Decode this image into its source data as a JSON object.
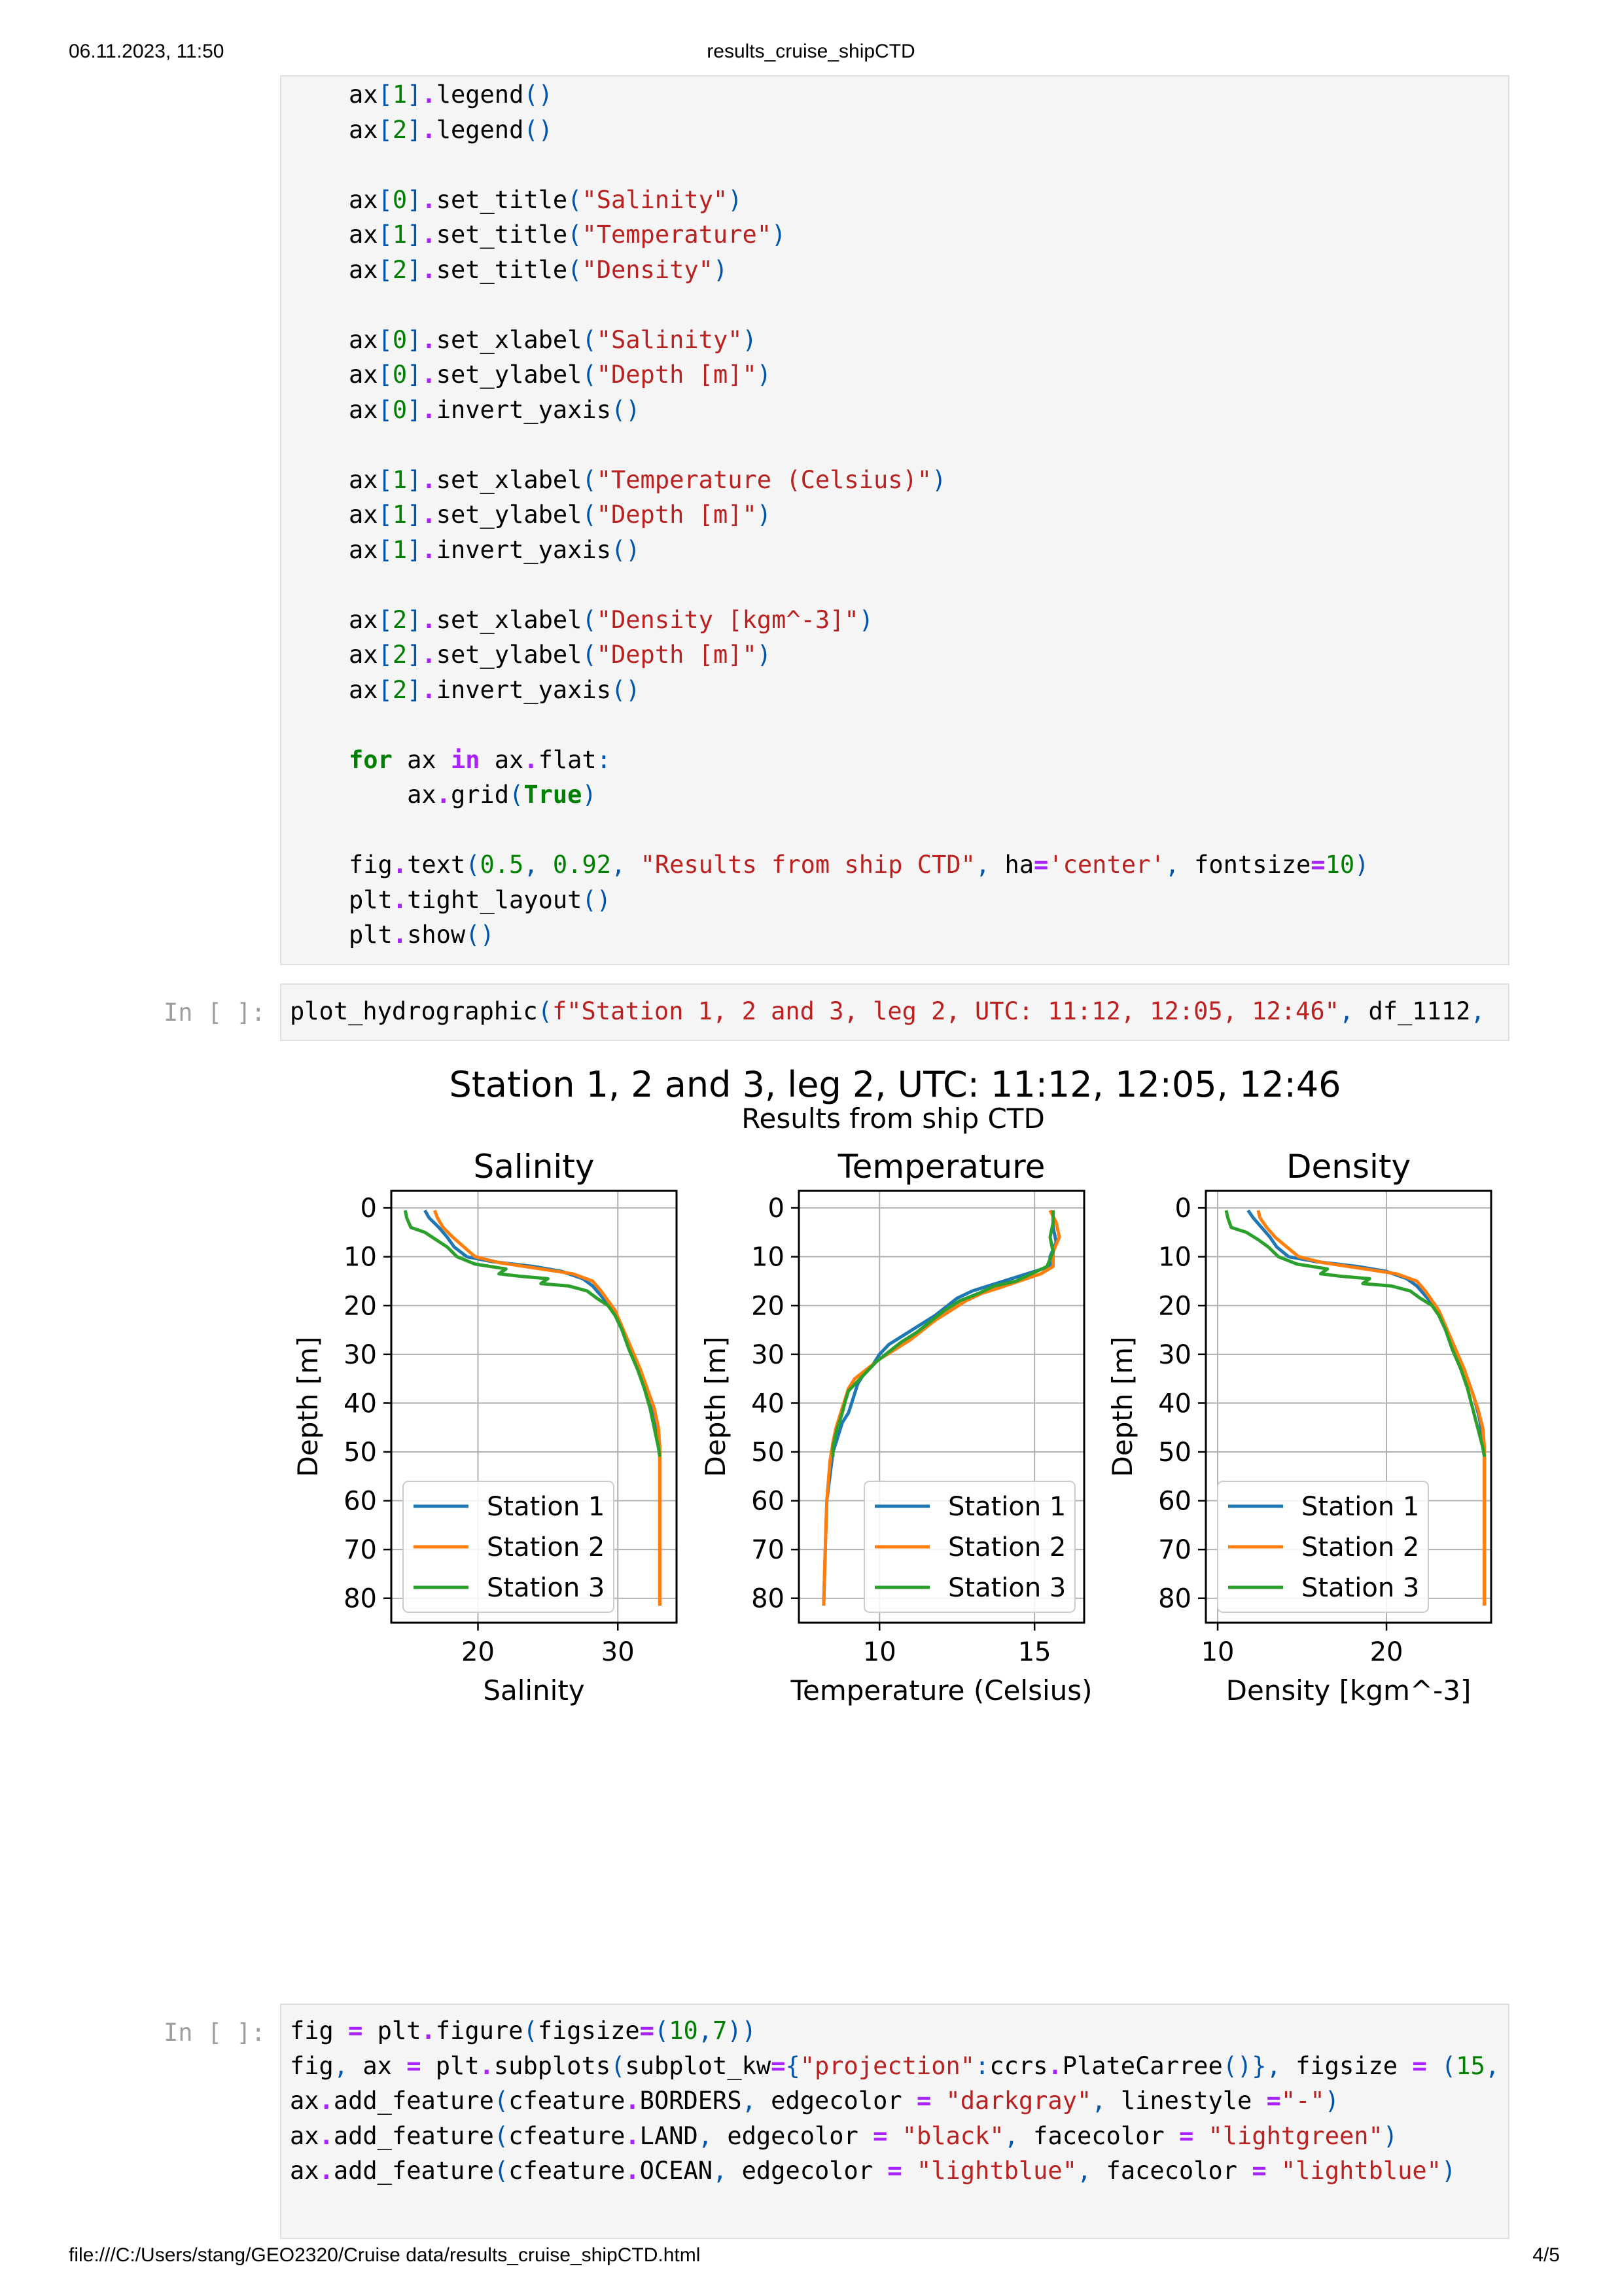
{
  "print_header": {
    "datetime": "06.11.2023, 11:50",
    "doc_title": "results_cruise_shipCTD"
  },
  "print_footer": {
    "path": "file:///C:/Users/stang/GEO2320/Cruise data/results_cruise_shipCTD.html",
    "page": "4/5"
  },
  "cells": {
    "cell2_prompt": "In [ ]:",
    "cell3_prompt": "In [ ]:"
  },
  "figure": {
    "suptitle": "Station 1, 2 and 3, leg 2, UTC: 11:12, 12:05, 12:46",
    "subtitle": "Results from ship CTD"
  },
  "colors": {
    "station1": "#1f77b4",
    "station2": "#ff7f0e",
    "station3": "#2ca02c"
  },
  "chart_data": [
    {
      "type": "line",
      "title": "Salinity",
      "xlabel": "Salinity",
      "ylabel": "Depth [m]",
      "xlim": [
        13.8,
        34.2
      ],
      "ylim": [
        85,
        -3.5
      ],
      "xticks": [
        20,
        30
      ],
      "yticks": [
        0,
        10,
        20,
        30,
        40,
        50,
        60,
        70,
        80
      ],
      "grid": true,
      "legend": "lower-left",
      "series": [
        {
          "name": "Station 1",
          "points": [
            [
              16.2,
              0.5
            ],
            [
              16.5,
              2
            ],
            [
              17.2,
              4
            ],
            [
              17.8,
              6
            ],
            [
              18.3,
              8
            ],
            [
              19.2,
              10
            ],
            [
              21,
              11
            ],
            [
              24,
              12
            ],
            [
              26,
              13
            ],
            [
              27.5,
              14.5
            ],
            [
              28.2,
              16
            ],
            [
              28.8,
              18
            ],
            [
              29.4,
              20
            ],
            [
              30,
              23
            ],
            [
              30.6,
              27
            ],
            [
              31.2,
              31
            ],
            [
              31.8,
              35
            ],
            [
              32.3,
              39
            ],
            [
              32.7,
              43
            ],
            [
              32.9,
              47
            ],
            [
              33,
              50
            ],
            [
              33,
              60
            ],
            [
              33,
              70
            ],
            [
              33,
              81.5
            ]
          ]
        },
        {
          "name": "Station 2",
          "points": [
            [
              16.9,
              0.5
            ],
            [
              17.1,
              2
            ],
            [
              17.5,
              4
            ],
            [
              18.2,
              6
            ],
            [
              19,
              8
            ],
            [
              19.8,
              10
            ],
            [
              21.5,
              11.2
            ],
            [
              24.5,
              12.5
            ],
            [
              26.8,
              13.5
            ],
            [
              28.2,
              15
            ],
            [
              28.8,
              17
            ],
            [
              29.3,
              19
            ],
            [
              29.8,
              21
            ],
            [
              30.4,
              25
            ],
            [
              31,
              29
            ],
            [
              31.6,
              33
            ],
            [
              32.1,
              37
            ],
            [
              32.6,
              41
            ],
            [
              32.9,
              45
            ],
            [
              33,
              49
            ],
            [
              33,
              60
            ],
            [
              33,
              70
            ],
            [
              33,
              81.5
            ]
          ]
        },
        {
          "name": "Station 3",
          "points": [
            [
              14.8,
              0.5
            ],
            [
              14.9,
              2
            ],
            [
              15.2,
              4
            ],
            [
              16.2,
              5
            ],
            [
              17,
              6.5
            ],
            [
              17.8,
              8
            ],
            [
              18.5,
              10
            ],
            [
              19.8,
              11.5
            ],
            [
              22,
              12.5
            ],
            [
              21.5,
              13.5
            ],
            [
              23,
              14
            ],
            [
              25,
              14.5
            ],
            [
              24.5,
              15.5
            ],
            [
              26.5,
              16
            ],
            [
              27.8,
              17
            ],
            [
              28.5,
              18.5
            ],
            [
              29.3,
              20
            ],
            [
              29.8,
              22
            ],
            [
              30.3,
              25
            ],
            [
              30.8,
              29
            ],
            [
              31.4,
              33
            ],
            [
              31.9,
              37
            ],
            [
              32.3,
              41
            ],
            [
              32.6,
              45
            ],
            [
              32.9,
              49
            ],
            [
              33,
              51
            ]
          ]
        }
      ]
    },
    {
      "type": "line",
      "title": "Temperature",
      "xlabel": "Temperature (Celsius)",
      "ylabel": "Depth [m]",
      "xlim": [
        7.4,
        16.6
      ],
      "ylim": [
        85,
        -3.5
      ],
      "xticks": [
        10,
        15
      ],
      "yticks": [
        0,
        10,
        20,
        30,
        40,
        50,
        60,
        70,
        80
      ],
      "grid": true,
      "legend": "lower-right",
      "series": [
        {
          "name": "Station 1",
          "points": [
            [
              15.6,
              0.5
            ],
            [
              15.6,
              4
            ],
            [
              15.7,
              7
            ],
            [
              15.5,
              10
            ],
            [
              15.5,
              12
            ],
            [
              15,
              13
            ],
            [
              14.5,
              14
            ],
            [
              14,
              15
            ],
            [
              13.5,
              16
            ],
            [
              13,
              17
            ],
            [
              12.5,
              18.5
            ],
            [
              12.2,
              20
            ],
            [
              11.8,
              22
            ],
            [
              11.3,
              24
            ],
            [
              10.8,
              26
            ],
            [
              10.3,
              28
            ],
            [
              10,
              30
            ],
            [
              9.8,
              32
            ],
            [
              9.5,
              34
            ],
            [
              9.3,
              36
            ],
            [
              9.2,
              38
            ],
            [
              9.1,
              40
            ],
            [
              9,
              42
            ],
            [
              8.8,
              44
            ],
            [
              8.7,
              46
            ],
            [
              8.6,
              48
            ],
            [
              8.5,
              50
            ],
            [
              8.4,
              55
            ],
            [
              8.3,
              60
            ],
            [
              8.25,
              70
            ],
            [
              8.2,
              81.5
            ]
          ]
        },
        {
          "name": "Station 2",
          "points": [
            [
              15.5,
              0.5
            ],
            [
              15.7,
              3
            ],
            [
              15.8,
              6
            ],
            [
              15.6,
              9
            ],
            [
              15.6,
              12
            ],
            [
              15.2,
              13.5
            ],
            [
              14.5,
              15
            ],
            [
              13.8,
              16.5
            ],
            [
              13.3,
              17.5
            ],
            [
              12.8,
              19
            ],
            [
              12.3,
              21
            ],
            [
              11.8,
              23
            ],
            [
              11.4,
              25
            ],
            [
              11,
              27
            ],
            [
              10.5,
              29
            ],
            [
              10,
              31
            ],
            [
              9.6,
              33
            ],
            [
              9.2,
              35
            ],
            [
              9,
              37
            ],
            [
              8.9,
              39
            ],
            [
              8.8,
              41
            ],
            [
              8.7,
              43
            ],
            [
              8.6,
              45
            ],
            [
              8.5,
              48
            ],
            [
              8.4,
              52
            ],
            [
              8.3,
              60
            ],
            [
              8.25,
              70
            ],
            [
              8.2,
              81.5
            ]
          ]
        },
        {
          "name": "Station 3",
          "points": [
            [
              15.6,
              0.5
            ],
            [
              15.6,
              3
            ],
            [
              15.5,
              6
            ],
            [
              15.6,
              9
            ],
            [
              15.4,
              12
            ],
            [
              14.9,
              13.5
            ],
            [
              14.4,
              15
            ],
            [
              13.7,
              16
            ],
            [
              13.2,
              17.5
            ],
            [
              12.6,
              19
            ],
            [
              12.1,
              21
            ],
            [
              11.6,
              23.5
            ],
            [
              11.2,
              25.5
            ],
            [
              10.7,
              27.5
            ],
            [
              10.3,
              29.5
            ],
            [
              9.9,
              31.5
            ],
            [
              9.6,
              33.5
            ],
            [
              9.3,
              35.5
            ],
            [
              9,
              37.5
            ],
            [
              8.9,
              39.5
            ],
            [
              8.8,
              42
            ],
            [
              8.7,
              44
            ],
            [
              8.6,
              46
            ],
            [
              8.5,
              49
            ],
            [
              8.5,
              51
            ]
          ]
        }
      ]
    },
    {
      "type": "line",
      "title": "Density",
      "xlabel": "Density [kgm^-3]",
      "ylabel": "Depth [m]",
      "xlim": [
        9.3,
        26.2
      ],
      "ylim": [
        85,
        -3.5
      ],
      "xticks": [
        10,
        20
      ],
      "yticks": [
        0,
        10,
        20,
        30,
        40,
        50,
        60,
        70,
        80
      ],
      "grid": true,
      "legend": "lower-left",
      "series": [
        {
          "name": "Station 1",
          "points": [
            [
              11.8,
              0.5
            ],
            [
              12.1,
              2
            ],
            [
              12.6,
              4
            ],
            [
              13.1,
              6
            ],
            [
              13.5,
              8
            ],
            [
              14.2,
              10
            ],
            [
              15.8,
              11
            ],
            [
              18.3,
              12
            ],
            [
              20,
              13
            ],
            [
              21.2,
              14.5
            ],
            [
              21.8,
              16
            ],
            [
              22.3,
              18
            ],
            [
              22.8,
              20
            ],
            [
              23.3,
              23
            ],
            [
              23.8,
              27
            ],
            [
              24.3,
              31
            ],
            [
              24.8,
              35
            ],
            [
              25.2,
              39
            ],
            [
              25.5,
              43
            ],
            [
              25.7,
              47
            ],
            [
              25.8,
              50
            ],
            [
              25.8,
              60
            ],
            [
              25.8,
              70
            ],
            [
              25.8,
              81.5
            ]
          ]
        },
        {
          "name": "Station 2",
          "points": [
            [
              12.4,
              0.5
            ],
            [
              12.5,
              2
            ],
            [
              12.9,
              4
            ],
            [
              13.4,
              6
            ],
            [
              14.1,
              8
            ],
            [
              14.8,
              10
            ],
            [
              16.2,
              11.2
            ],
            [
              18.7,
              12.5
            ],
            [
              20.6,
              13.5
            ],
            [
              21.8,
              15
            ],
            [
              22.3,
              17
            ],
            [
              22.7,
              19
            ],
            [
              23.1,
              21
            ],
            [
              23.6,
              25
            ],
            [
              24.1,
              29
            ],
            [
              24.6,
              33
            ],
            [
              25,
              37
            ],
            [
              25.4,
              41
            ],
            [
              25.7,
              45
            ],
            [
              25.8,
              49
            ],
            [
              25.8,
              60
            ],
            [
              25.8,
              70
            ],
            [
              25.8,
              81.5
            ]
          ]
        },
        {
          "name": "Station 3",
          "points": [
            [
              10.5,
              0.5
            ],
            [
              10.6,
              2
            ],
            [
              10.8,
              4
            ],
            [
              11.7,
              5
            ],
            [
              12.4,
              6.5
            ],
            [
              13,
              8
            ],
            [
              13.6,
              10
            ],
            [
              14.7,
              11.5
            ],
            [
              16.5,
              12.5
            ],
            [
              16.1,
              13.5
            ],
            [
              17.3,
              14
            ],
            [
              19,
              14.5
            ],
            [
              18.6,
              15.5
            ],
            [
              20.3,
              16
            ],
            [
              21.4,
              17
            ],
            [
              22,
              18.5
            ],
            [
              22.7,
              20
            ],
            [
              23.1,
              22
            ],
            [
              23.5,
              25
            ],
            [
              23.9,
              29
            ],
            [
              24.4,
              33
            ],
            [
              24.8,
              37
            ],
            [
              25.1,
              41
            ],
            [
              25.4,
              45
            ],
            [
              25.7,
              49
            ],
            [
              25.8,
              51
            ]
          ]
        }
      ]
    }
  ]
}
